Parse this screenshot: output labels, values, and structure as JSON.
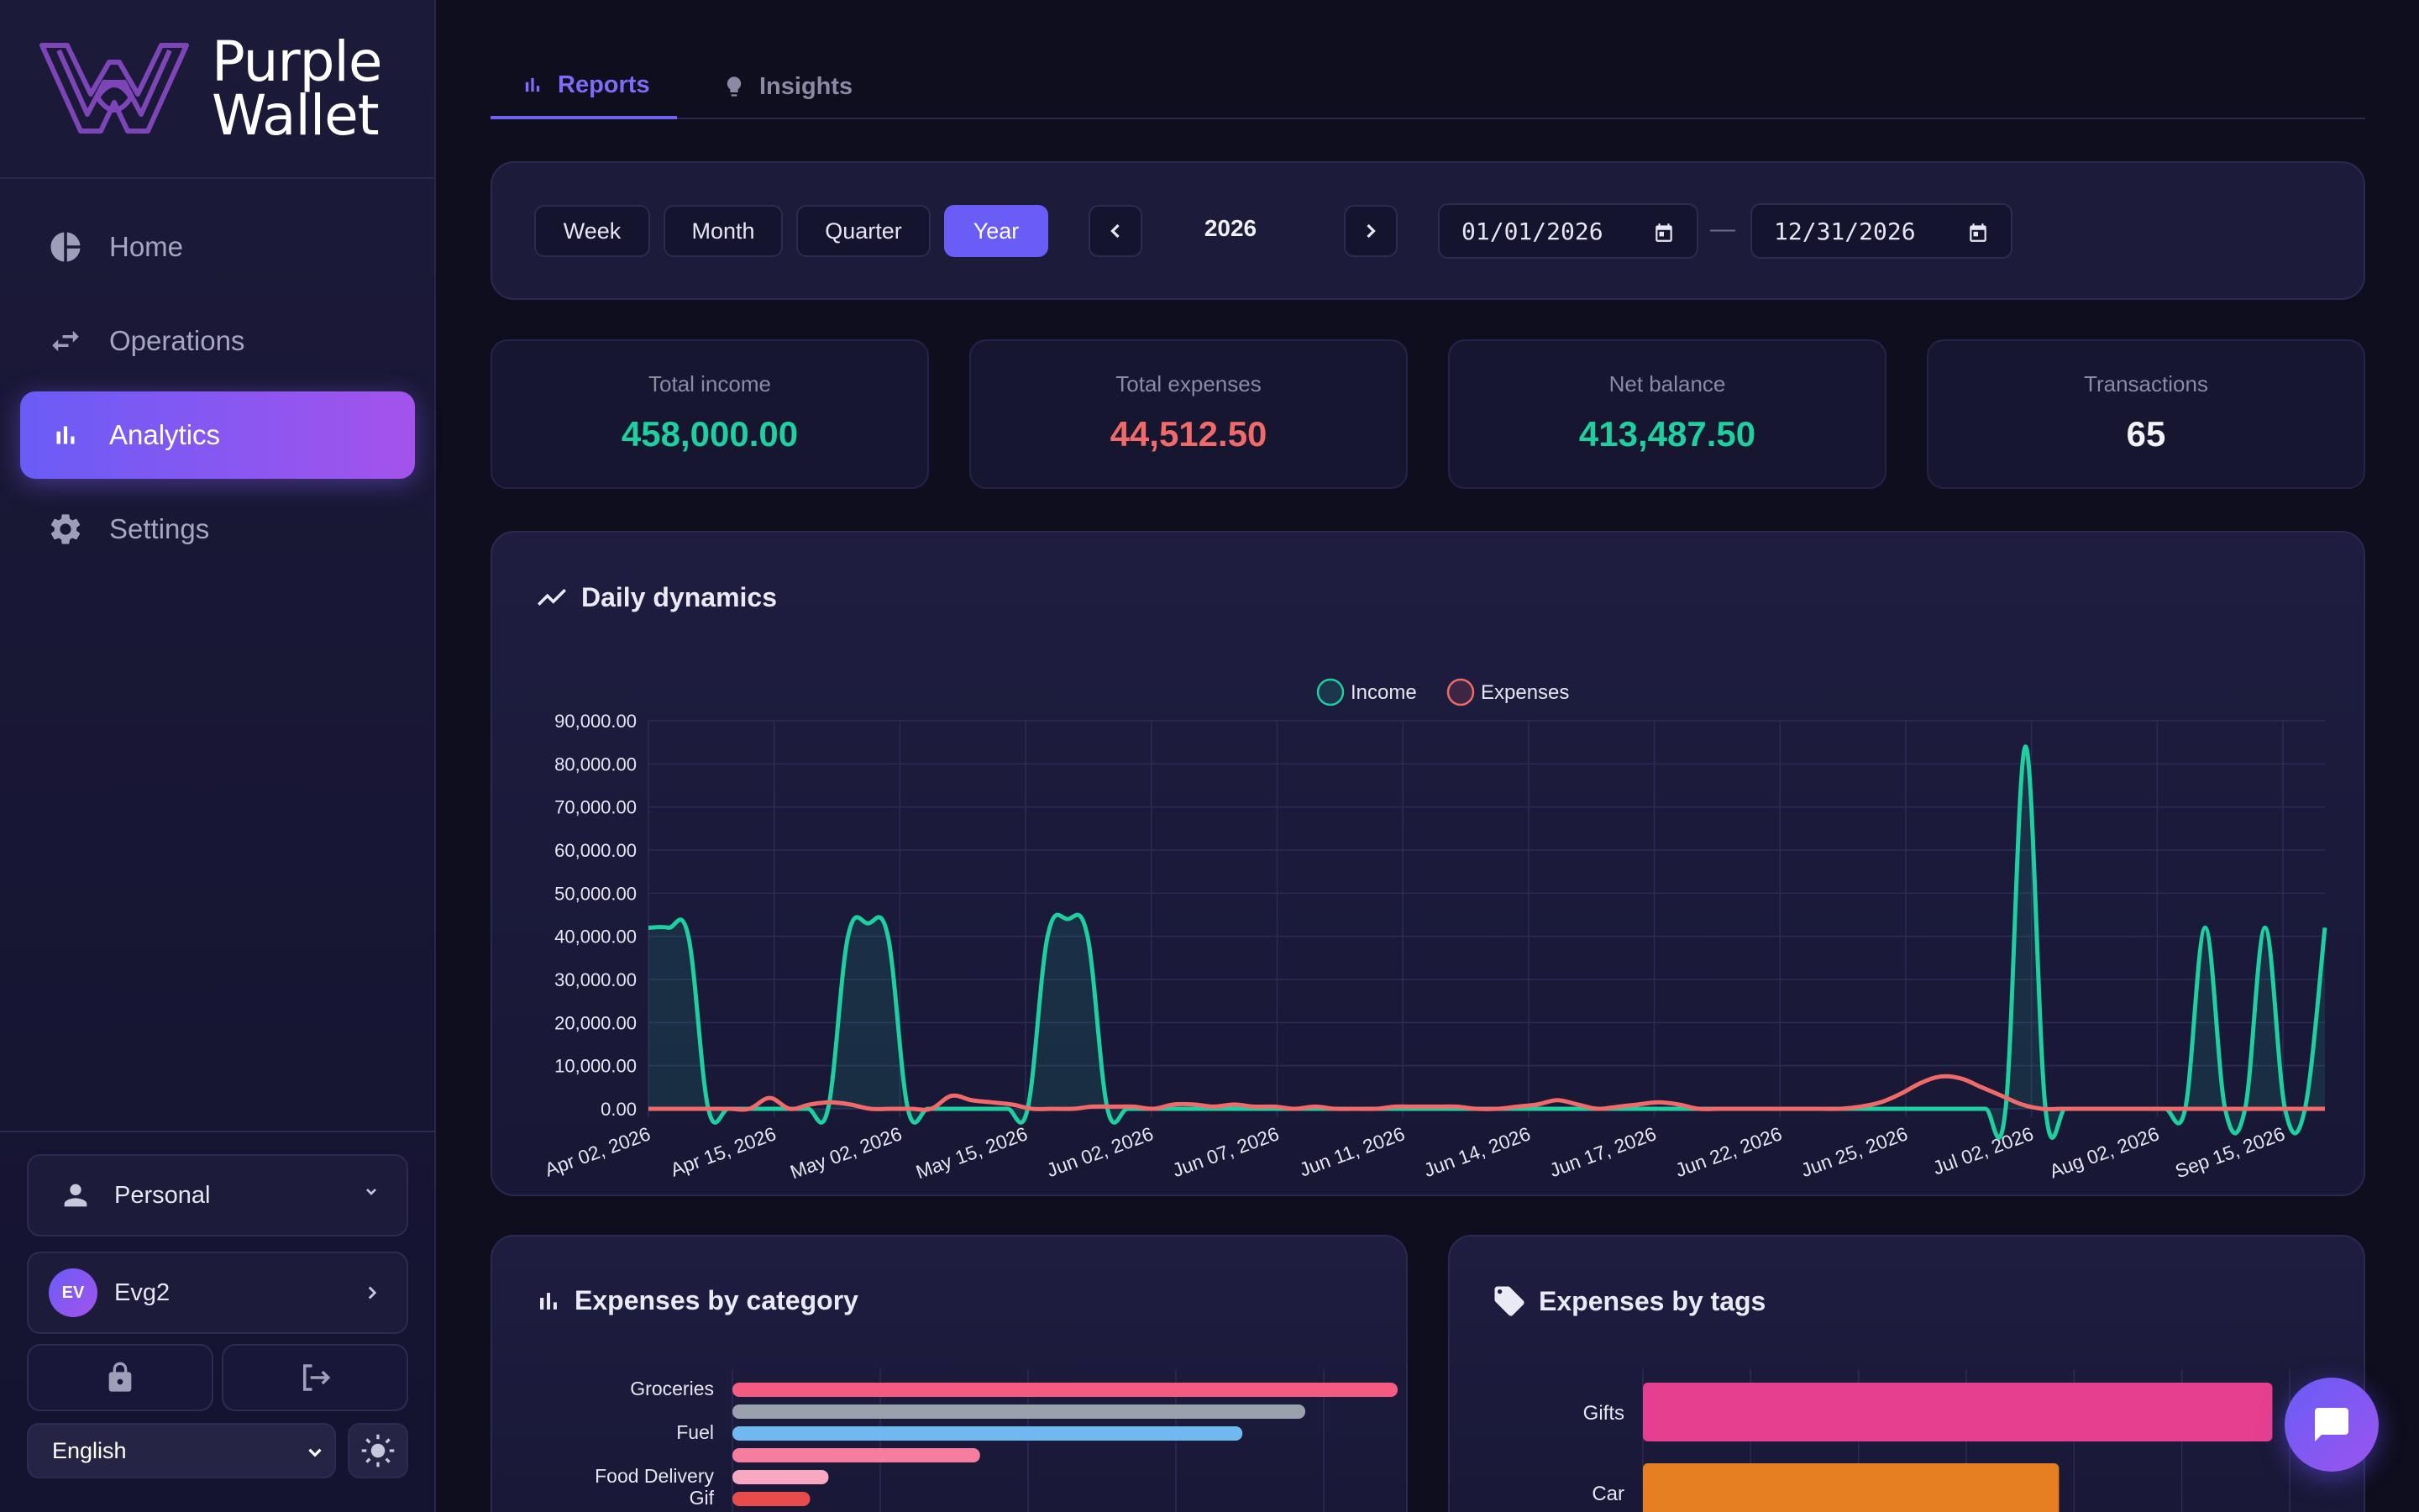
{
  "brand": {
    "line1": "Purple",
    "line2": "Wallet"
  },
  "nav": [
    {
      "label": "Home",
      "icon": "pie-chart-icon",
      "active": false
    },
    {
      "label": "Operations",
      "icon": "swap-arrows-icon",
      "active": false
    },
    {
      "label": "Analytics",
      "icon": "bar-chart-icon",
      "active": true
    },
    {
      "label": "Settings",
      "icon": "gear-icon",
      "active": false
    }
  ],
  "account": {
    "selected": "Personal"
  },
  "user": {
    "initials": "EV",
    "name": "Evg2"
  },
  "language": {
    "selected": "English"
  },
  "tabs": [
    {
      "label": "Reports",
      "active": true
    },
    {
      "label": "Insights",
      "active": false
    }
  ],
  "period": {
    "buttons": [
      "Week",
      "Month",
      "Quarter",
      "Year"
    ],
    "selected": "Year",
    "year": "2026",
    "date_from": "01/01/2026",
    "date_sep": "—",
    "date_to": "12/31/2026"
  },
  "stats": [
    {
      "label": "Total income",
      "value": "458,000.00",
      "color": "#1ecf9f"
    },
    {
      "label": "Total expenses",
      "value": "44,512.50",
      "color": "#f06a6a"
    },
    {
      "label": "Net balance",
      "value": "413,487.50",
      "color": "#1ecf9f"
    },
    {
      "label": "Transactions",
      "value": "65",
      "color": "#f2f2f8"
    }
  ],
  "daily": {
    "title": "Daily dynamics"
  },
  "category": {
    "title": "Expenses by category"
  },
  "tags_card": {
    "title": "Expenses by tags"
  },
  "chart_data": [
    {
      "type": "line",
      "title": "Daily dynamics",
      "legend": {
        "position": "top-center",
        "entries": [
          "Income",
          "Expenses"
        ]
      },
      "grid": true,
      "ylim": [
        0,
        90000
      ],
      "yticks": [
        "90,000.00",
        "80,000.00",
        "70,000.00",
        "60,000.00",
        "50,000.00",
        "40,000.00",
        "30,000.00",
        "20,000.00",
        "10,000.00",
        "0.00"
      ],
      "x_tick_labels": [
        "Apr 02, 2026",
        "Apr 15, 2026",
        "May 02, 2026",
        "May 15, 2026",
        "Jun 02, 2026",
        "Jun 07, 2026",
        "Jun 11, 2026",
        "Jun 14, 2026",
        "Jun 17, 2026",
        "Jun 22, 2026",
        "Jun 25, 2026",
        "Jul 02, 2026",
        "Aug 02, 2026",
        "Sep 15, 2026"
      ],
      "series": [
        {
          "name": "Income",
          "color": "#1ecf9f",
          "fill": true,
          "values": [
            42000,
            42000,
            40000,
            0,
            0,
            0,
            0,
            0,
            0,
            0,
            40000,
            43000,
            40000,
            0,
            0,
            0,
            0,
            0,
            0,
            0,
            40000,
            44000,
            40000,
            0,
            0,
            0,
            0,
            0,
            0,
            0,
            0,
            0,
            0,
            0,
            0,
            0,
            0,
            0,
            0,
            0,
            0,
            0,
            0,
            0,
            0,
            0,
            0,
            0,
            0,
            0,
            0,
            0,
            0,
            0,
            0,
            0,
            0,
            0,
            0,
            0,
            0,
            0,
            0,
            0,
            0,
            0,
            0,
            0,
            0,
            84000,
            0,
            0,
            0,
            0,
            0,
            0,
            0,
            0,
            42000,
            0,
            0,
            42000,
            0,
            0,
            42000
          ]
        },
        {
          "name": "Expenses",
          "color": "#f06a6a",
          "fill": false,
          "values": [
            0,
            0,
            0,
            0,
            0,
            0,
            2500,
            0,
            1000,
            1500,
            1000,
            0,
            0,
            0,
            0,
            3000,
            2000,
            1500,
            1000,
            0,
            0,
            0,
            500,
            500,
            500,
            0,
            1000,
            1000,
            500,
            1000,
            500,
            500,
            0,
            500,
            0,
            0,
            0,
            500,
            500,
            500,
            500,
            0,
            0,
            500,
            1000,
            2000,
            1000,
            0,
            500,
            1000,
            1500,
            1000,
            0,
            0,
            0,
            0,
            0,
            0,
            0,
            0,
            500,
            1500,
            3500,
            6000,
            7500,
            7000,
            5000,
            3000,
            1000,
            0,
            0,
            0,
            0,
            0,
            0,
            0,
            0,
            0,
            0,
            0,
            0,
            0,
            0,
            0
          ]
        }
      ]
    },
    {
      "type": "bar",
      "orientation": "horizontal",
      "title": "Expenses by category",
      "categories": [
        "Groceries",
        "",
        "Fuel",
        "",
        "Food Delivery",
        "Gif"
      ],
      "values": [
        18000,
        15500,
        13800,
        6700,
        2600,
        2100
      ],
      "colors": [
        "#f45b80",
        "#9aa0ac",
        "#6fb9f0",
        "#f57da0",
        "#f9a8c3",
        "#e84b4b"
      ],
      "xlim": [
        0,
        20000
      ]
    },
    {
      "type": "bar",
      "orientation": "horizontal",
      "title": "Expenses by tags",
      "categories": [
        "Gifts",
        "Car"
      ],
      "values": [
        14600,
        9650
      ],
      "colors": [
        "#e73f8f",
        "#e67e22"
      ],
      "xlim": [
        0,
        15000
      ]
    }
  ]
}
